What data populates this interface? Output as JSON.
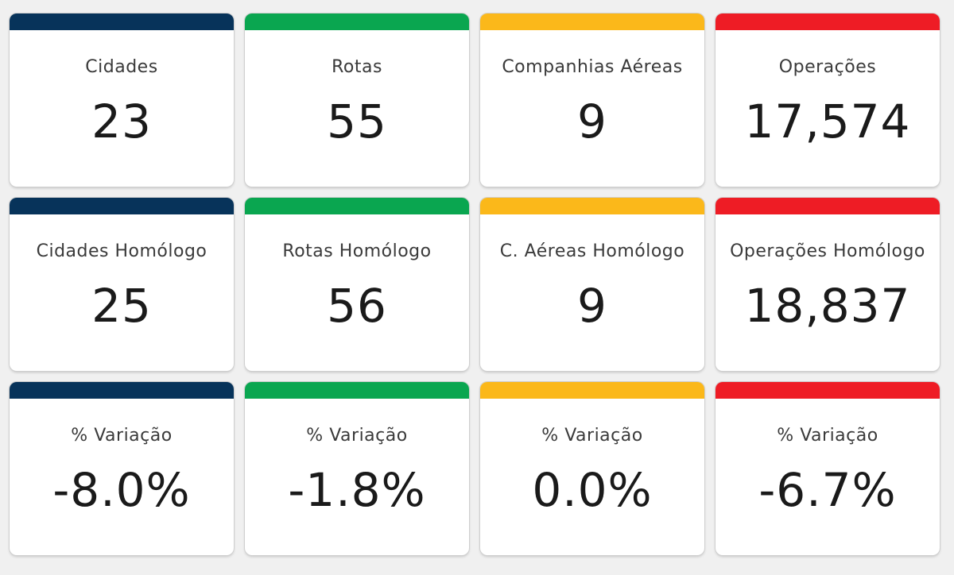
{
  "colors": {
    "navy": "#07335a",
    "green": "#0aa650",
    "yellow": "#fbb81a",
    "red": "#ee1c25",
    "background": "#f0f0f0",
    "card": "#ffffff"
  },
  "rows": [
    {
      "cards": [
        {
          "label": "Cidades",
          "value": "23",
          "color": "#07335a"
        },
        {
          "label": "Rotas",
          "value": "55",
          "color": "#0aa650"
        },
        {
          "label": "Companhias Aéreas",
          "value": "9",
          "color": "#fbb81a"
        },
        {
          "label": "Operações",
          "value": "17,574",
          "color": "#ee1c25"
        }
      ]
    },
    {
      "cards": [
        {
          "label": "Cidades Homólogo",
          "value": "25",
          "color": "#07335a"
        },
        {
          "label": "Rotas Homólogo",
          "value": "56",
          "color": "#0aa650"
        },
        {
          "label": "C. Aéreas Homólogo",
          "value": "9",
          "color": "#fbb81a"
        },
        {
          "label": "Operações Homólogo",
          "value": "18,837",
          "color": "#ee1c25"
        }
      ]
    },
    {
      "cards": [
        {
          "label": "% Variação",
          "value": "-8.0%",
          "color": "#07335a"
        },
        {
          "label": "% Variação",
          "value": "-1.8%",
          "color": "#0aa650"
        },
        {
          "label": "% Variação",
          "value": "0.0%",
          "color": "#fbb81a"
        },
        {
          "label": "% Variação",
          "value": "-6.7%",
          "color": "#ee1c25"
        }
      ]
    }
  ]
}
